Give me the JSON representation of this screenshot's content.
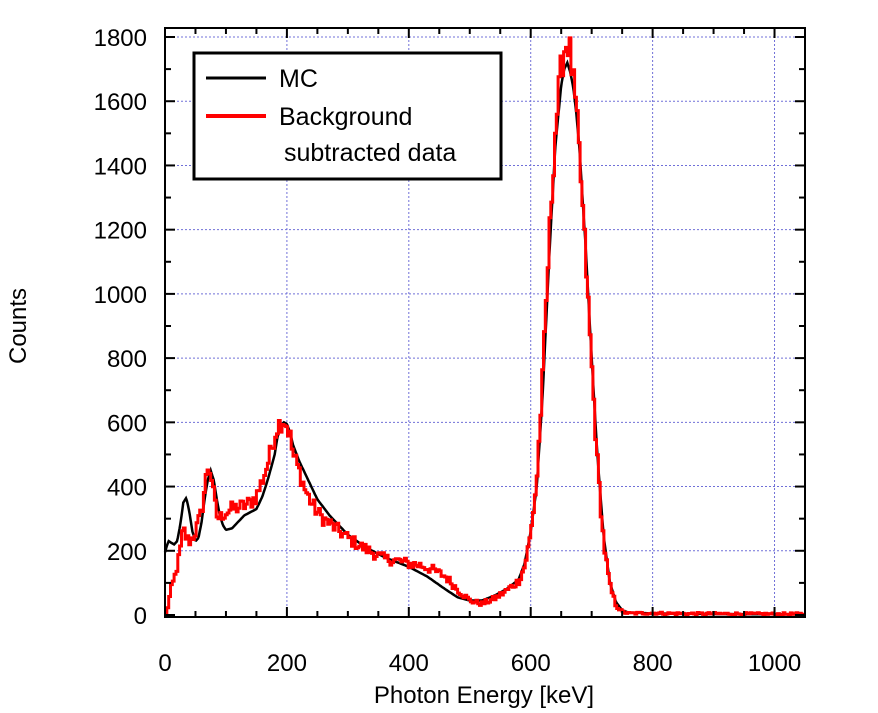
{
  "chart_data": {
    "type": "line",
    "xlabel": "Photon Energy [keV]",
    "ylabel": "Counts",
    "xlim": [
      0,
      1050
    ],
    "ylim": [
      0,
      1820
    ],
    "x_ticks": [
      0,
      200,
      400,
      600,
      800,
      1000
    ],
    "y_ticks": [
      0,
      200,
      400,
      600,
      800,
      1000,
      1200,
      1400,
      1600,
      1800
    ],
    "x_minor_step": 50,
    "y_minor_step": 100,
    "grid": true,
    "legend_position": "top-left",
    "series": [
      {
        "name": "MC",
        "color": "#000000",
        "style": "smooth",
        "x": [
          0,
          3,
          6,
          10,
          15,
          20,
          25,
          30,
          35,
          40,
          45,
          50,
          55,
          60,
          65,
          70,
          75,
          80,
          85,
          90,
          95,
          100,
          110,
          120,
          130,
          140,
          150,
          160,
          170,
          180,
          185,
          190,
          195,
          200,
          205,
          210,
          220,
          230,
          240,
          250,
          270,
          300,
          330,
          360,
          400,
          430,
          460,
          480,
          500,
          520,
          540,
          560,
          580,
          590,
          600,
          610,
          620,
          630,
          640,
          650,
          655,
          660,
          665,
          670,
          675,
          680,
          690,
          700,
          710,
          720,
          730,
          740,
          750,
          760,
          800,
          850,
          900,
          1000,
          1050
        ],
        "y": [
          195,
          215,
          230,
          225,
          220,
          230,
          280,
          350,
          365,
          320,
          260,
          230,
          240,
          290,
          360,
          420,
          450,
          420,
          360,
          310,
          280,
          265,
          270,
          290,
          310,
          320,
          330,
          370,
          430,
          500,
          560,
          590,
          600,
          595,
          570,
          530,
          480,
          440,
          400,
          360,
          310,
          250,
          210,
          180,
          150,
          120,
          80,
          55,
          45,
          45,
          60,
          80,
          110,
          160,
          260,
          400,
          700,
          1100,
          1450,
          1650,
          1700,
          1720,
          1690,
          1640,
          1560,
          1450,
          1150,
          800,
          480,
          240,
          100,
          40,
          15,
          8,
          5,
          4,
          3,
          2,
          2
        ]
      },
      {
        "name": "Background",
        "name_line2": "subtracted data",
        "color": "#ff0000",
        "style": "step",
        "x": [
          0,
          3,
          6,
          10,
          15,
          20,
          25,
          30,
          35,
          40,
          45,
          50,
          55,
          60,
          65,
          70,
          75,
          80,
          85,
          90,
          95,
          100,
          110,
          120,
          130,
          140,
          150,
          160,
          170,
          175,
          180,
          185,
          190,
          195,
          200,
          205,
          210,
          220,
          230,
          240,
          250,
          260,
          280,
          300,
          320,
          340,
          360,
          380,
          400,
          420,
          440,
          460,
          480,
          500,
          520,
          540,
          560,
          580,
          590,
          600,
          610,
          620,
          630,
          640,
          650,
          655,
          660,
          665,
          670,
          675,
          680,
          690,
          700,
          710,
          720,
          730,
          740,
          750,
          760,
          800,
          850,
          900,
          1000,
          1050
        ],
        "y": [
          0,
          10,
          40,
          80,
          110,
          150,
          200,
          270,
          240,
          230,
          240,
          260,
          290,
          320,
          390,
          460,
          450,
          370,
          310,
          300,
          315,
          320,
          330,
          335,
          340,
          350,
          370,
          420,
          480,
          520,
          560,
          590,
          600,
          610,
          590,
          560,
          500,
          450,
          390,
          350,
          320,
          300,
          270,
          240,
          215,
          195,
          175,
          170,
          160,
          155,
          140,
          120,
          80,
          45,
          35,
          50,
          75,
          105,
          150,
          250,
          420,
          750,
          1150,
          1500,
          1700,
          1760,
          1790,
          1750,
          1660,
          1560,
          1430,
          1120,
          780,
          460,
          220,
          90,
          30,
          10,
          5,
          6,
          4,
          4,
          3,
          3
        ],
        "noise": true
      }
    ]
  }
}
